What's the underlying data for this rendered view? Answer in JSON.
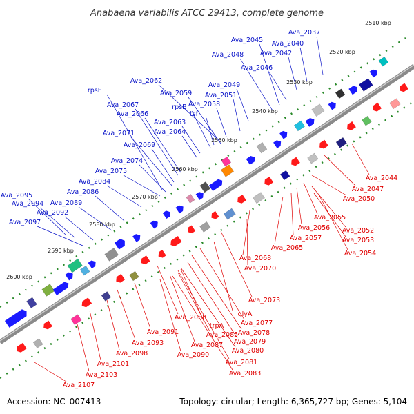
{
  "title": "Anabaena variabilis ATCC 29413, complete genome",
  "footer": {
    "accession": "Accession: NC_007413",
    "summary": "Topology: circular; Length: 6,365,727 bp; Genes: 5,104"
  },
  "colors": {
    "forward_label": "#0a14c8",
    "reverse_label": "#e00000",
    "forward_gene": "#1a1aff",
    "reverse_gene": "#ff1a1a",
    "backbone": "#888888"
  },
  "scale_labels": [
    "2510 kbp",
    "2520 kbp",
    "2530 kbp",
    "2540 kbp",
    "2550 kbp",
    "2560 kbp",
    "2570 kbp",
    "2580 kbp",
    "2590 kbp",
    "2600 kbp"
  ],
  "forward_labels": [
    "Ava_2037",
    "Ava_2045",
    "Ava_2040",
    "Ava_2048",
    "Ava_2042",
    "Ava_2046",
    "Ava_2062",
    "Ava_2049",
    "rpsF",
    "Ava_2059",
    "Ava_2051",
    "Ava_2067",
    "rpsB",
    "Ava_2058",
    "Ava_2066",
    "tsf",
    "Ava_2063",
    "Ava_2071",
    "Ava_2064",
    "Ava_2069",
    "Ava_2074",
    "Ava_2075",
    "Ava_2084",
    "Ava_2086",
    "Ava_2095",
    "Ava_2089",
    "Ava_2094",
    "Ava_2092",
    "Ava_2097"
  ],
  "reverse_labels": [
    "Ava_2044",
    "Ava_2047",
    "Ava_2050",
    "Ava_2055",
    "Ava_2056",
    "Ava_2052",
    "Ava_2057",
    "Ava_2053",
    "Ava_2065",
    "Ava_2054",
    "Ava_2068",
    "Ava_2070",
    "Ava_2073",
    "glyA",
    "Ava_2088",
    "Ava_2077",
    "trpA",
    "Ava_2078",
    "Ava_2091",
    "Ava_2085",
    "Ava_2079",
    "Ava_2093",
    "Ava_2087",
    "Ava_2080",
    "Ava_2098",
    "Ava_2090",
    "Ava_2081",
    "Ava_2101",
    "Ava_2083",
    "Ava_2103",
    "Ava_2107"
  ]
}
